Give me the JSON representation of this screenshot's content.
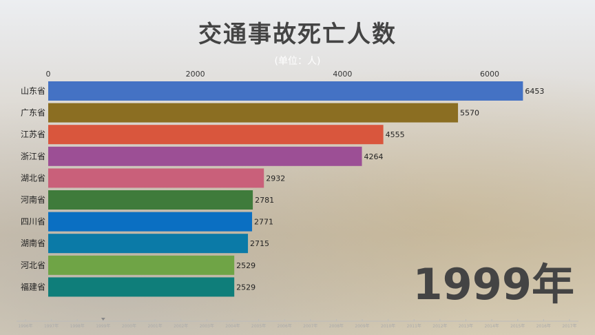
{
  "chart_data": {
    "type": "bar",
    "orientation": "horizontal",
    "title": "交通事故死亡人数",
    "subtitle": "(单位：人)",
    "categories": [
      "山东省",
      "广东省",
      "江苏省",
      "浙江省",
      "湖北省",
      "河南省",
      "四川省",
      "湖南省",
      "河北省",
      "福建省"
    ],
    "values": [
      6453,
      5570,
      4555,
      4264,
      2932,
      2781,
      2771,
      2715,
      2529,
      2529
    ],
    "colors": [
      "#4472c4",
      "#8b6e22",
      "#d9563d",
      "#9c4f95",
      "#c9607a",
      "#3f7b3b",
      "#0a6fc2",
      "#0b7aa7",
      "#6fa446",
      "#0f7e7a"
    ],
    "xlim": [
      0,
      6600
    ],
    "xticks": [
      0,
      2000,
      4000,
      6000
    ],
    "grid": false,
    "current_year": "1999年",
    "timeline": [
      "1996年",
      "1997年",
      "1998年",
      "1999年",
      "2000年",
      "2001年",
      "2002年",
      "2003年",
      "2004年",
      "2005年",
      "2006年",
      "2007年",
      "2008年",
      "2009年",
      "2010年",
      "2011年",
      "2012年",
      "2013年",
      "2014年",
      "2015年",
      "2016年",
      "2017年"
    ],
    "timeline_selected": "1999年"
  }
}
